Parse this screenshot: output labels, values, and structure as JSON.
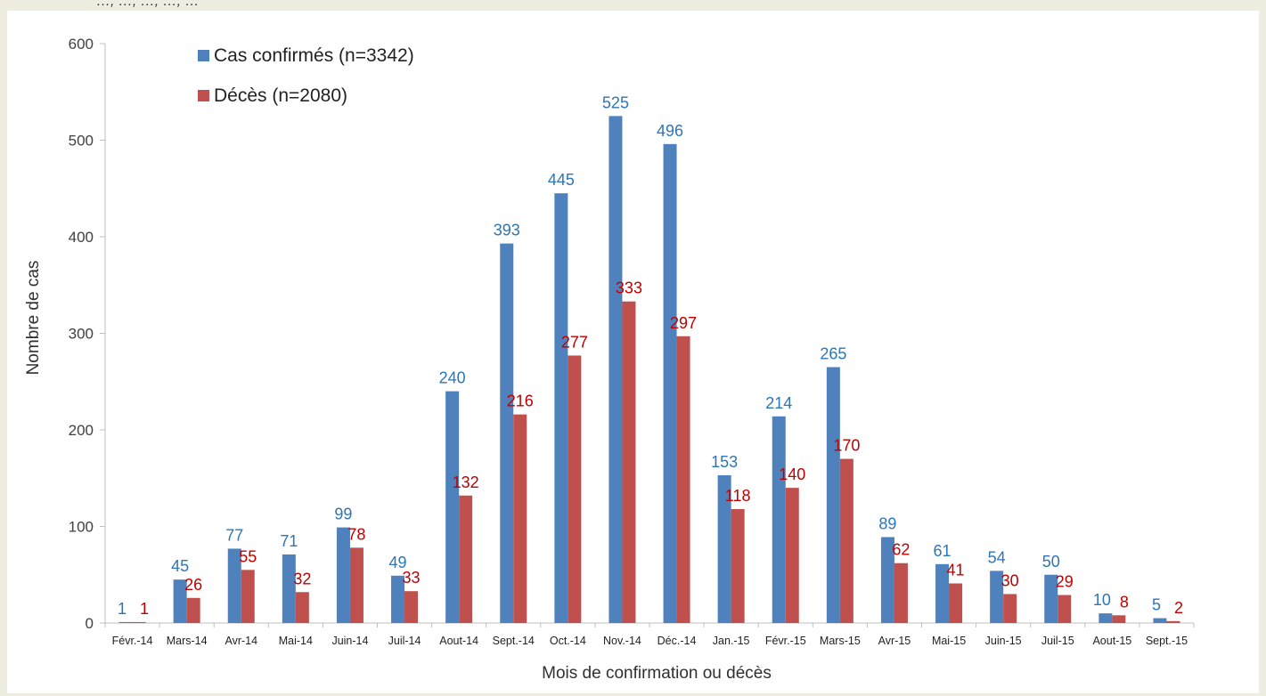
{
  "caption_fragment": "…, …, …, …, …",
  "chart_data": {
    "type": "bar",
    "categories": [
      "Févr.-14",
      "Mars-14",
      "Avr-14",
      "Mai-14",
      "Juin-14",
      "Juil-14",
      "Aout-14",
      "Sept.-14",
      "Oct.-14",
      "Nov.-14",
      "Déc.-14",
      "Jan.-15",
      "Févr.-15",
      "Mars-15",
      "Avr-15",
      "Mai-15",
      "Juin-15",
      "Juil-15",
      "Aout-15",
      "Sept.-15"
    ],
    "series": [
      {
        "name": "Cas confirmés (n=3342)",
        "color": "#4f81bd",
        "label_color": "#2e75b6",
        "values": [
          1,
          45,
          77,
          71,
          99,
          49,
          240,
          393,
          445,
          525,
          496,
          153,
          214,
          265,
          89,
          61,
          54,
          50,
          10,
          5
        ]
      },
      {
        "name": "Décès (n=2080)",
        "color": "#c0504d",
        "label_color": "#c00000",
        "values": [
          1,
          26,
          55,
          32,
          78,
          33,
          132,
          216,
          277,
          333,
          297,
          118,
          140,
          170,
          62,
          41,
          30,
          29,
          8,
          2
        ]
      }
    ],
    "xlabel": "Mois de confirmation ou décès",
    "ylabel": "Nombre de cas",
    "ylim": [
      0,
      600
    ],
    "yticks": [
      "0",
      "100",
      "200",
      "300",
      "400",
      "500",
      "600"
    ],
    "legend_position": "top-left",
    "grid": false
  }
}
